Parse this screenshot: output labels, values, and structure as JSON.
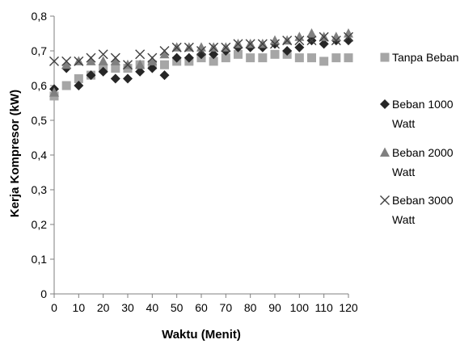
{
  "chart_data": {
    "type": "scatter",
    "title": "",
    "xlabel": "Waktu (Menit)",
    "ylabel": "Kerja Kompresor (kW)",
    "xlim": [
      0,
      120
    ],
    "ylim": [
      0,
      0.8
    ],
    "x_ticks": [
      "0",
      "10",
      "20",
      "30",
      "40",
      "50",
      "60",
      "70",
      "80",
      "90",
      "100",
      "110",
      "120"
    ],
    "y_ticks": [
      "0",
      "0,1",
      "0,2",
      "0,3",
      "0,4",
      "0,5",
      "0,6",
      "0,7",
      "0,8"
    ],
    "grid": false,
    "legend_position": "right",
    "x": [
      0,
      5,
      10,
      15,
      20,
      25,
      30,
      35,
      40,
      45,
      50,
      55,
      60,
      65,
      70,
      75,
      80,
      85,
      90,
      95,
      100,
      105,
      110,
      115,
      120
    ],
    "series": [
      {
        "name": "Tanpa Beban",
        "legend_lines": [
          "Tanpa Beban"
        ],
        "marker": "square",
        "color": "#a6a6a6",
        "values": [
          0.57,
          0.6,
          0.62,
          0.63,
          0.65,
          0.65,
          0.65,
          0.66,
          0.66,
          0.66,
          0.67,
          0.67,
          0.68,
          0.67,
          0.68,
          0.69,
          0.68,
          0.68,
          0.69,
          0.69,
          0.68,
          0.68,
          0.67,
          0.68,
          0.68
        ]
      },
      {
        "name": "Beban 1000 Watt",
        "legend_lines": [
          "Beban 1000",
          "Watt"
        ],
        "marker": "diamond",
        "color": "#262626",
        "values": [
          0.59,
          0.65,
          0.6,
          0.63,
          0.64,
          0.62,
          0.62,
          0.64,
          0.65,
          0.63,
          0.68,
          0.68,
          0.69,
          0.69,
          0.7,
          0.71,
          0.71,
          0.71,
          0.72,
          0.7,
          0.71,
          0.73,
          0.72,
          0.73,
          0.73
        ]
      },
      {
        "name": "Beban 2000 Watt",
        "legend_lines": [
          "Beban 2000",
          "Watt"
        ],
        "marker": "triangle",
        "color": "#808080",
        "values": [
          0.58,
          0.66,
          0.67,
          0.67,
          0.67,
          0.67,
          0.66,
          0.66,
          0.67,
          0.69,
          0.71,
          0.71,
          0.71,
          0.71,
          0.71,
          0.72,
          0.72,
          0.72,
          0.73,
          0.73,
          0.74,
          0.75,
          0.74,
          0.74,
          0.75
        ]
      },
      {
        "name": "Beban 3000 Watt",
        "legend_lines": [
          "Beban 3000",
          "Watt"
        ],
        "marker": "x",
        "color": "#404040",
        "values": [
          0.67,
          0.67,
          0.67,
          0.68,
          0.69,
          0.68,
          0.66,
          0.69,
          0.68,
          0.7,
          0.71,
          0.71,
          0.7,
          0.71,
          0.71,
          0.72,
          0.72,
          0.72,
          0.72,
          0.73,
          0.73,
          0.73,
          0.74,
          0.73,
          0.74
        ]
      }
    ]
  }
}
